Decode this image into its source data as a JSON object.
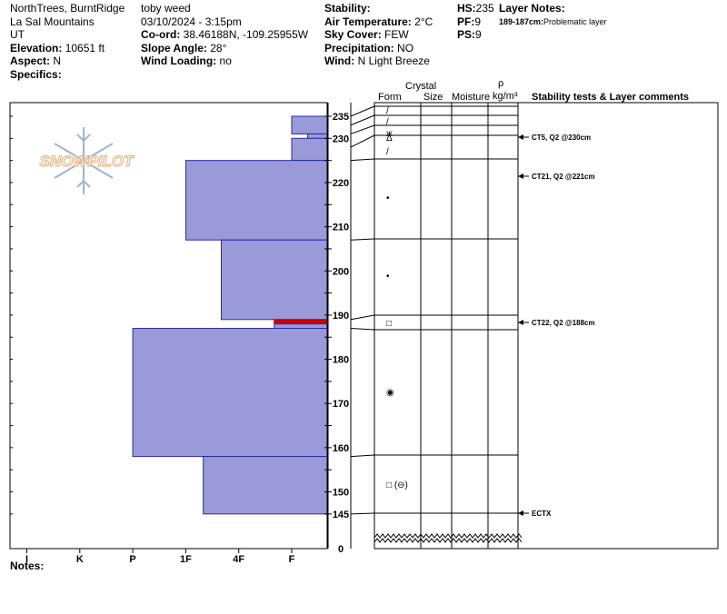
{
  "header": {
    "location": "NorthTrees, BurntRidge",
    "range": "La Sal Mountains",
    "state": "UT",
    "elevation_label": "Elevation:",
    "elevation_value": "10651 ft",
    "aspect_label": "Aspect:",
    "aspect_value": "N",
    "specifics_label": "Specifics:",
    "observer": "toby weed",
    "datetime": "03/10/2024 - 3:15pm",
    "coord_label": "Co-ord:",
    "coord_value": "38.46188N, -109.25955W",
    "slope_label": "Slope Angle:",
    "slope_value": "28°",
    "wind_loading_label": "Wind Loading:",
    "wind_loading_value": "no",
    "stability_label": "Stability:",
    "air_temp_label": "Air Temperature:",
    "air_temp_value": "2°C",
    "sky_label": "Sky Cover:",
    "sky_value": "FEW",
    "precip_label": "Precipitation:",
    "precip_value": "NO",
    "wind_label": "Wind:",
    "wind_value": "N Light Breeze",
    "hs_label": "HS:",
    "hs_value": "235",
    "pf_label": "PF:",
    "pf_value": "9",
    "ps_label": "PS:",
    "ps_value": "9",
    "layer_notes_label": "Layer Notes:",
    "layer_note_range": "189-187cm:",
    "layer_note_text": "Problematic layer"
  },
  "columns": {
    "crystal": "Crystal",
    "form": "Form",
    "size": "Size",
    "moisture": "Moisture",
    "rho": "ρ",
    "density": "kg/m³",
    "stability": "Stability tests & Layer comments"
  },
  "notes_label": "Notes:",
  "logo_text": "SNOWPILOT",
  "chart_data": {
    "type": "bar",
    "hardness_ticks": [
      "I",
      "K",
      "P",
      "1F",
      "4F",
      "F"
    ],
    "y_ticks": [
      235,
      230,
      220,
      210,
      200,
      190,
      180,
      170,
      160,
      150,
      145,
      0
    ],
    "layers": [
      {
        "top": 235,
        "bottom": 231,
        "hardness_idx": 5.0
      },
      {
        "top": 231,
        "bottom": 230,
        "hardness_idx": 5.3
      },
      {
        "top": 230,
        "bottom": 225,
        "hardness_idx": 5.0
      },
      {
        "top": 225,
        "bottom": 207,
        "hardness_idx": 3.0
      },
      {
        "top": 207,
        "bottom": 189,
        "hardness_idx": 3.67
      },
      {
        "top": 189,
        "bottom": 188,
        "hardness_idx": 4.67,
        "problematic": true
      },
      {
        "top": 188,
        "bottom": 187,
        "hardness_idx": 4.67
      },
      {
        "top": 187,
        "bottom": 158,
        "hardness_idx": 2.0
      },
      {
        "top": 158,
        "bottom": 145,
        "hardness_idx": 3.33
      }
    ],
    "layer_boundaries": [
      235,
      233,
      231,
      228,
      225,
      207,
      189,
      187,
      158,
      145
    ],
    "grain_forms": [
      {
        "label": "/",
        "y": 234
      },
      {
        "label": "/",
        "y": 232
      },
      {
        "label": "ж",
        "y": 230.7
      },
      {
        "label": "Δ",
        "y": 229.5
      },
      {
        "label": "/",
        "y": 226.5
      },
      {
        "label": "•",
        "y": 216
      },
      {
        "label": "•",
        "y": 198
      },
      {
        "label": "□",
        "y": 188
      },
      {
        "label": "◉",
        "y": 172
      },
      {
        "label": "□ (⊖)",
        "y": 151.5
      }
    ],
    "tests": [
      {
        "label": "CT5, Q2 @230cm",
        "y": 230
      },
      {
        "label": "CT21, Q2 @221cm",
        "y": 221
      },
      {
        "label": "CT22, Q2 @188cm",
        "y": 188
      },
      {
        "label": "ECTX",
        "y": 145
      }
    ],
    "colors": {
      "fill": "#9a9ad9",
      "stroke": "#2a2aa6",
      "problem": "#cc0000"
    }
  }
}
